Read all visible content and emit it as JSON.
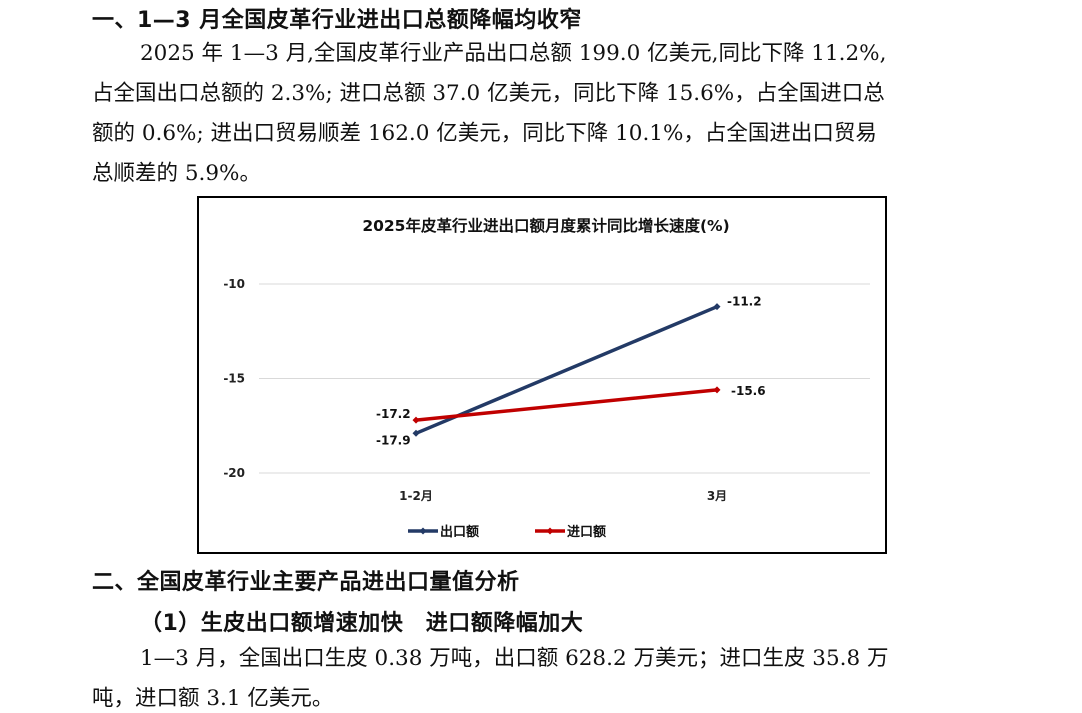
{
  "section1": {
    "heading": "一、1—3 月全国皮革行业进出口总额降幅均收窄",
    "paragraph": [
      "2025 年 1—3 月,全国皮革行业产品出口总额 199.0 亿美元,同比下降 11.2%,",
      "占全国出口总额的 2.3%; 进口总额 37.0 亿美元，同比下降 15.6%，占全国进口总",
      "额的 0.6%; 进出口贸易顺差 162.0 亿美元，同比下降 10.1%，占全国进出口贸易",
      "总顺差的 5.9%。"
    ]
  },
  "chart_data": {
    "type": "line",
    "title": "2025年皮革行业进出口额月度累计同比增长速度(%)",
    "categories": [
      "1-2月",
      "3月"
    ],
    "yticks": [
      "-10",
      "-15",
      "-20"
    ],
    "ylim": [
      -20,
      -10
    ],
    "grid": true,
    "legend_position": "bottom",
    "series": [
      {
        "name": "出口额",
        "values": [
          -17.9,
          -11.2
        ],
        "labels": [
          "-17.9",
          "-11.2"
        ],
        "color": "#233a66"
      },
      {
        "name": "进口额",
        "values": [
          -17.2,
          -15.6
        ],
        "labels": [
          "-17.2",
          "-15.6"
        ],
        "color": "#c00000"
      }
    ]
  },
  "section2": {
    "heading": "二、全国皮革行业主要产品进出口量值分析",
    "subheading": "（1）生皮出口额增速加快　进口额降幅加大",
    "paragraph": [
      "1—3 月，全国出口生皮 0.38 万吨，出口额 628.2 万美元；进口生皮 35.8 万",
      "吨，进口额 3.1 亿美元。"
    ]
  }
}
